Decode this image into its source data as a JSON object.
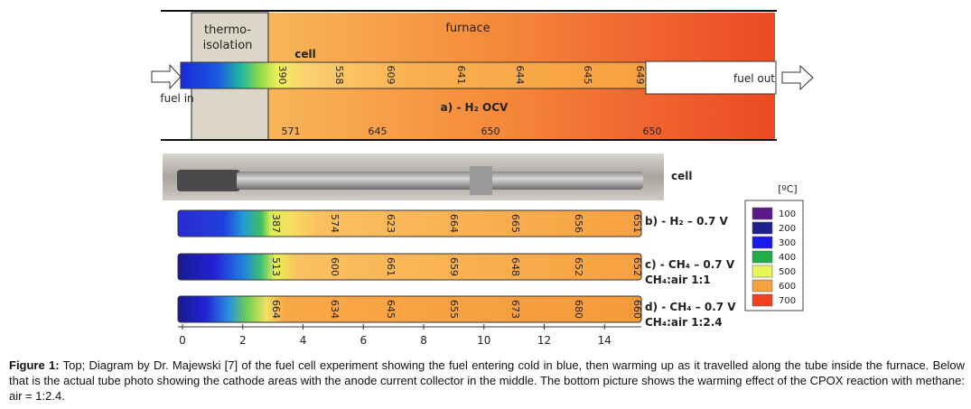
{
  "diagram": {
    "thermo_isolation": [
      "thermo-",
      "isolation"
    ],
    "furnace": "furnace",
    "cell": "cell",
    "fuel_in": "fuel in",
    "fuel_out": "fuel out",
    "panel_label": "a) - H₂ OCV",
    "cell_temps": [
      390,
      558,
      609,
      641,
      644,
      645,
      649
    ],
    "furnace_temps": [
      571,
      645,
      650,
      650
    ]
  },
  "photo": {
    "label": "cell"
  },
  "bars": [
    {
      "label": [
        "b) - H₂ – 0.7 V"
      ],
      "temps": [
        387,
        574,
        623,
        664,
        665,
        656,
        651
      ]
    },
    {
      "label": [
        "c) - CH₄ – 0.7 V",
        "CH₄:air 1:1"
      ],
      "temps": [
        513,
        600,
        661,
        659,
        648,
        652,
        652
      ]
    },
    {
      "label": [
        "d) - CH₄ – 0.7 V",
        "CH₄:air 1:2.4"
      ],
      "temps": [
        664,
        634,
        645,
        655,
        673,
        680,
        660
      ]
    }
  ],
  "axis": {
    "xlim": [
      -0.15,
      15.1
    ],
    "xticks": [
      0,
      2,
      4,
      6,
      8,
      10,
      12,
      14
    ]
  },
  "legend": {
    "title": "[ºC]",
    "entries": [
      {
        "label": 100,
        "color": "#5a1a8c"
      },
      {
        "label": 200,
        "color": "#1e1e8c"
      },
      {
        "label": 300,
        "color": "#1a1aee"
      },
      {
        "label": 400,
        "color": "#1fae4a"
      },
      {
        "label": 500,
        "color": "#e8f55a"
      },
      {
        "label": 600,
        "color": "#f7a040"
      },
      {
        "label": 700,
        "color": "#f04020"
      }
    ]
  },
  "caption": {
    "label": "Figure 1:",
    "text": " Top; Diagram by Dr. Majewski [7] of the fuel cell experiment showing the fuel entering cold in blue, then warming up as it travelled along the tube inside the furnace. Below that is the actual tube photo showing the cathode areas with the anode current collector in the middle. The bottom picture shows the warming effect of the CPOX reaction with methane: air = 1:2.4."
  }
}
